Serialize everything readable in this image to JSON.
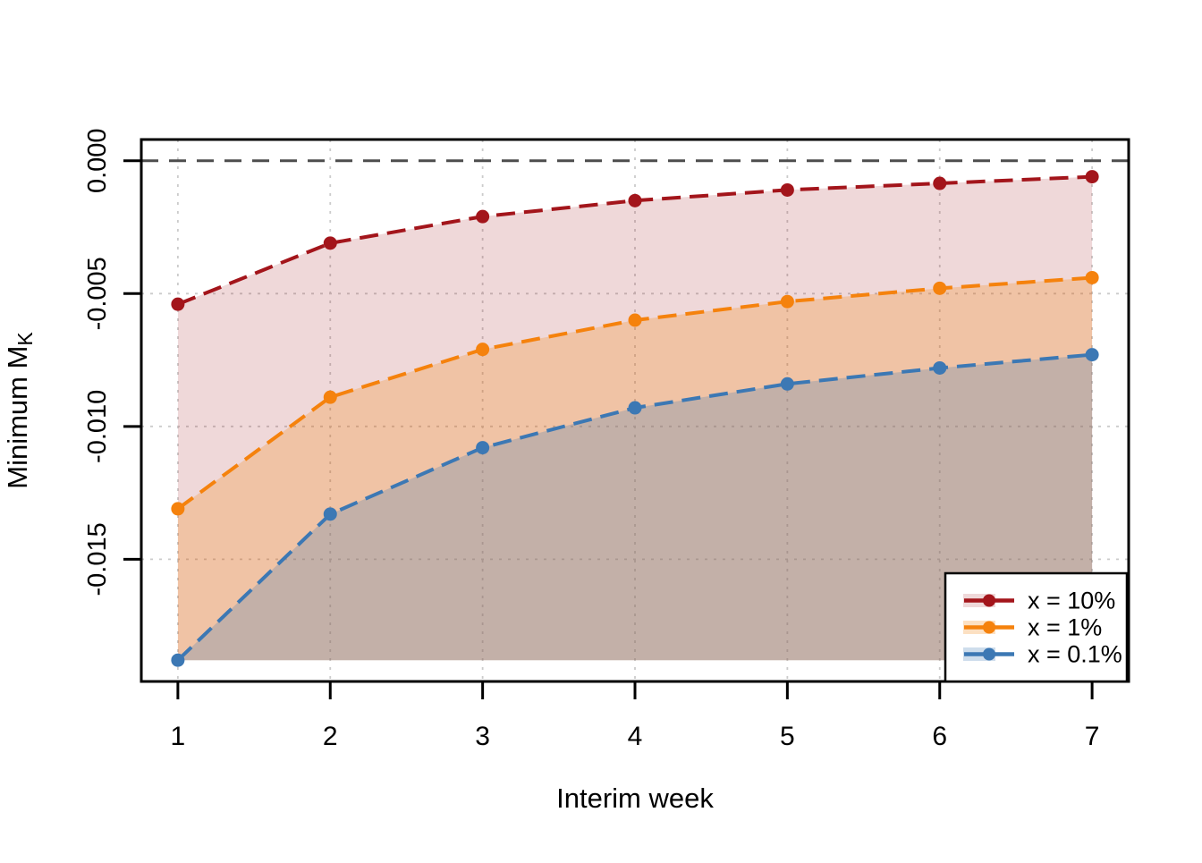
{
  "chart_data": {
    "type": "line",
    "title": "",
    "xlabel": "Interim week",
    "ylabel_main": "Minimum M",
    "ylabel_sub": "K",
    "x": [
      1,
      2,
      3,
      4,
      5,
      6,
      7
    ],
    "xtick_labels": [
      "1",
      "2",
      "3",
      "4",
      "5",
      "6",
      "7"
    ],
    "ytick_values": [
      0,
      -0.005,
      -0.01,
      -0.015
    ],
    "ytick_labels": [
      "0.000",
      "-0.005",
      "-0.010",
      "-0.015"
    ],
    "xlim": [
      0.76,
      7.24
    ],
    "ylim": [
      -0.0196,
      0.0008
    ],
    "grid": true,
    "grid_color": "#CBCBCB",
    "axis_color": "#000000",
    "background_color": "#FFFFFF",
    "reference_line": {
      "y": 0,
      "color": "#4D4D4D",
      "style": "longdash"
    },
    "legend": {
      "position": "bottom-right",
      "border_color": "#000000",
      "background_color": "#FFFFFF"
    },
    "series": [
      {
        "name": "x = 10%",
        "color": "#A3151B",
        "fill_color": "rgba(163,21,27,0.17)",
        "values": [
          -0.0054,
          -0.0031,
          -0.0021,
          -0.0015,
          -0.0011,
          -0.00085,
          -0.0006
        ]
      },
      {
        "name": "x = 1%",
        "color": "#F5820D",
        "fill_color": "rgba(245,130,13,0.25)",
        "values": [
          -0.0131,
          -0.0089,
          -0.0071,
          -0.006,
          -0.0053,
          -0.0048,
          -0.0044
        ]
      },
      {
        "name": "x = 0.1%",
        "color": "#3C78B4",
        "fill_color": "rgba(60,120,180,0.25)",
        "values": [
          -0.0188,
          -0.0133,
          -0.0108,
          -0.0093,
          -0.0084,
          -0.0078,
          -0.0073
        ]
      }
    ]
  }
}
